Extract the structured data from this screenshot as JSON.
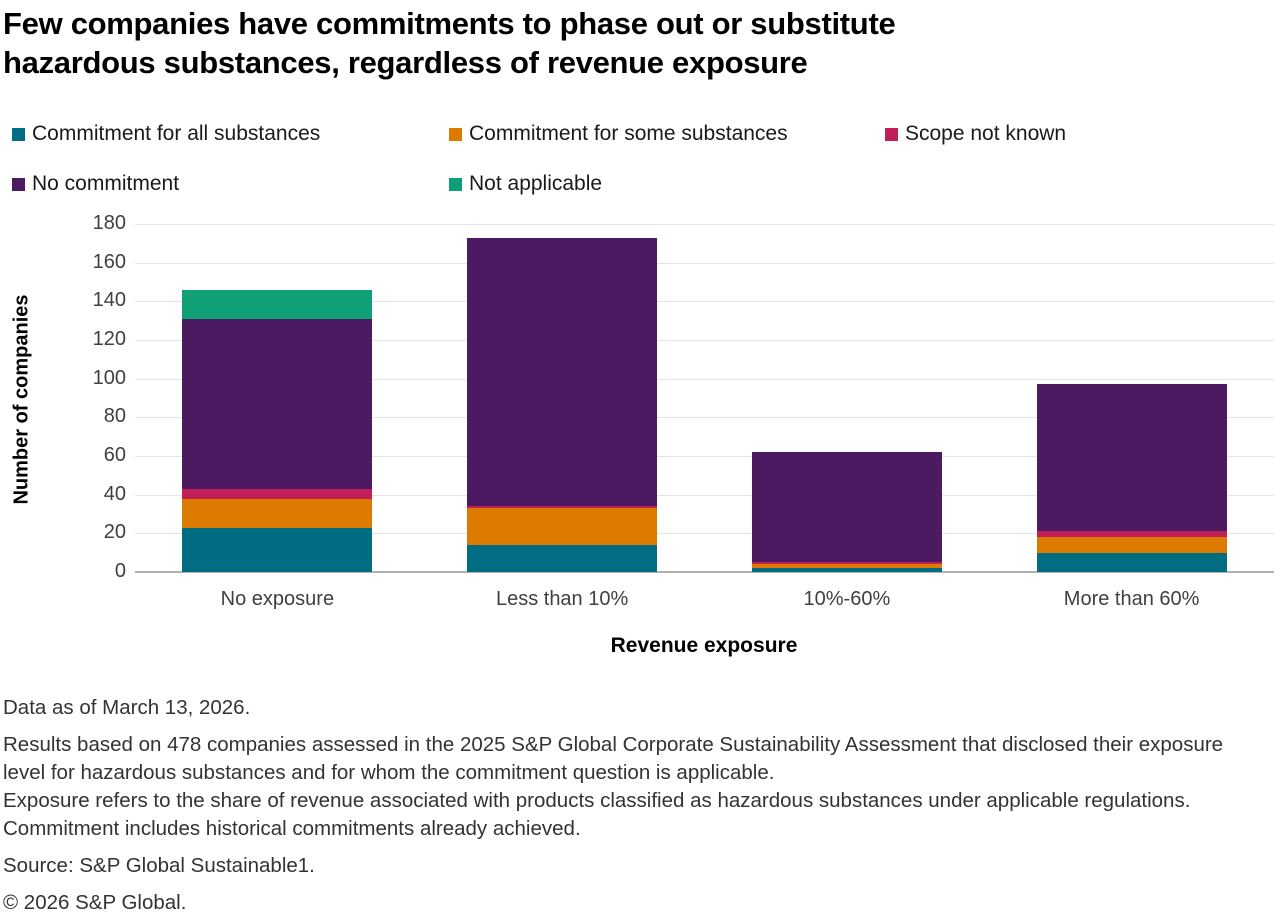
{
  "title": {
    "line1": "Few companies have commitments to phase out or substitute",
    "line2": "hazardous substances, regardless of revenue exposure"
  },
  "legend": {
    "items": [
      {
        "key": "commitment-all",
        "label": "Commitment for all substances",
        "color": "#006d82"
      },
      {
        "key": "commitment-some",
        "label": "Commitment for some substances",
        "color": "#dd7a00"
      },
      {
        "key": "scope-not-known",
        "label": "Scope not known",
        "color": "#c02057"
      },
      {
        "key": "no-commitment",
        "label": "No commitment",
        "color": "#4c1a61"
      },
      {
        "key": "not-applicable",
        "label": "Not applicable",
        "color": "#0fa078"
      }
    ]
  },
  "chart_data": {
    "type": "bar",
    "stacked": true,
    "categories": [
      "No exposure",
      "Less than 10%",
      "10%-60%",
      "More than 60%"
    ],
    "series": [
      {
        "name": "Commitment for all substances",
        "color": "#006d82",
        "values": [
          23,
          14,
          2,
          10
        ]
      },
      {
        "name": "Commitment for some substances",
        "color": "#dd7a00",
        "values": [
          15,
          19,
          2,
          8
        ]
      },
      {
        "name": "Scope not known",
        "color": "#c02057",
        "values": [
          5,
          1,
          1,
          3
        ]
      },
      {
        "name": "No commitment",
        "color": "#4c1a61",
        "values": [
          88,
          139,
          57,
          76
        ]
      },
      {
        "name": "Not applicable",
        "color": "#0fa078",
        "values": [
          15,
          0,
          0,
          0
        ]
      }
    ],
    "totals": [
      146,
      173,
      62,
      97
    ],
    "xlabel": "Revenue exposure",
    "ylabel": "Number of companies",
    "ylim": [
      0,
      180
    ],
    "ytick_step": 20,
    "grid": true,
    "legend_position": "top"
  },
  "footnotes": {
    "data_as_of": "Data as of March 13, 2026.",
    "results": "Results based on 478 companies assessed in the 2025 S&P Global Corporate Sustainability Assessment that disclosed their exposure level for hazardous substances and for whom the commitment question is applicable.",
    "exposure": "Exposure refers to the share of revenue associated with products classified as hazardous substances under applicable regulations. Commitment includes historical commitments already achieved.",
    "source": "Source: S&P Global Sustainable1.",
    "copyright": "© 2026 S&P Global."
  }
}
